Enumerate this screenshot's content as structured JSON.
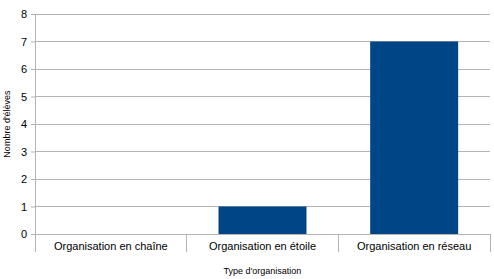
{
  "chart_data": {
    "type": "bar",
    "x_label": "Type d'organisation",
    "y_label": "Nombre d'élèves",
    "categories": [
      "Organisation en chaîne",
      "Organisation en étoile",
      "Organisation en réseau"
    ],
    "values": [
      0,
      1,
      7
    ],
    "color": "#004586",
    "ylim": [
      0,
      8
    ],
    "yticks": [
      0,
      1,
      2,
      3,
      4,
      5,
      6,
      7,
      8
    ],
    "grid": true
  }
}
